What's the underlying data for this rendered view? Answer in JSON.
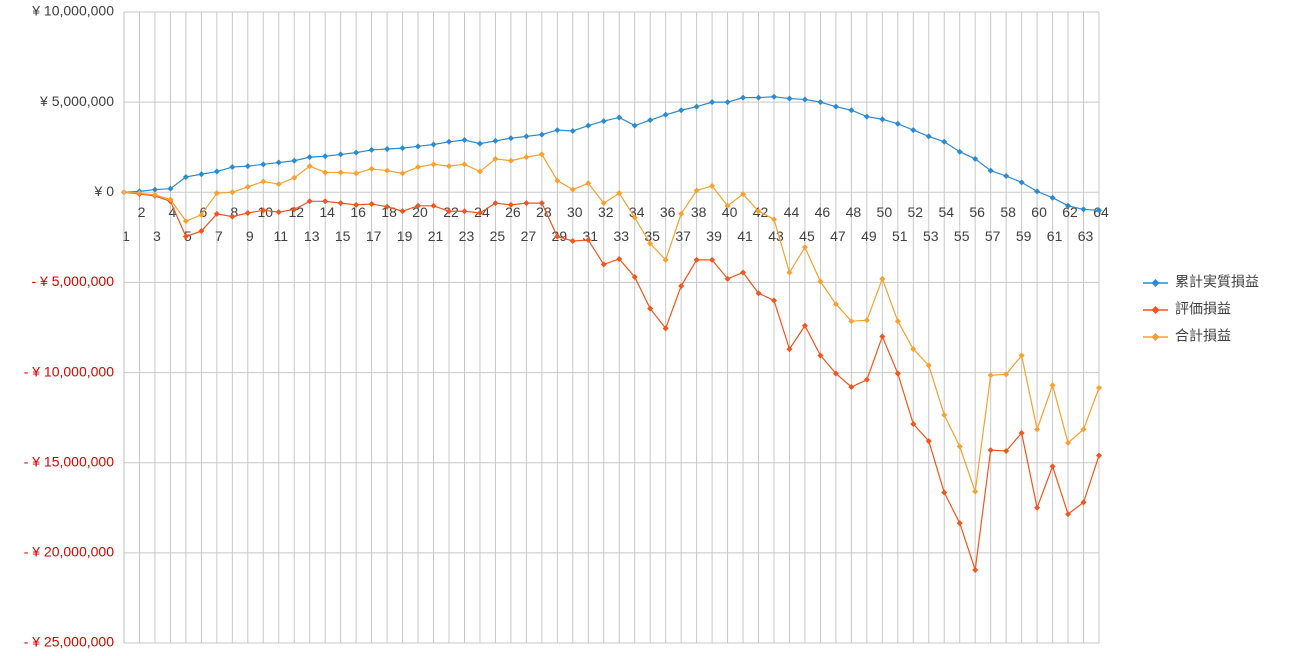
{
  "chart_data": {
    "type": "line",
    "categories": [
      "1",
      "2",
      "3",
      "4",
      "5",
      "6",
      "7",
      "8",
      "9",
      "10",
      "11",
      "12",
      "13",
      "14",
      "15",
      "16",
      "17",
      "18",
      "19",
      "20",
      "21",
      "22",
      "23",
      "24",
      "25",
      "26",
      "27",
      "28",
      "29",
      "30",
      "31",
      "32",
      "33",
      "34",
      "35",
      "36",
      "37",
      "38",
      "39",
      "40",
      "41",
      "42",
      "43",
      "44",
      "45",
      "46",
      "47",
      "48",
      "49",
      "50",
      "51",
      "52",
      "53",
      "54",
      "55",
      "56",
      "57",
      "58",
      "59",
      "60",
      "61",
      "62",
      "63",
      "64"
    ],
    "series": [
      {
        "name": "累計実質損益",
        "color": "#2a8ad2",
        "values": [
          0,
          50000,
          150000,
          200000,
          850000,
          1000000,
          1150000,
          1400000,
          1450000,
          1550000,
          1650000,
          1750000,
          1950000,
          2000000,
          2100000,
          2200000,
          2350000,
          2400000,
          2450000,
          2550000,
          2650000,
          2800000,
          2900000,
          2700000,
          2850000,
          3000000,
          3100000,
          3200000,
          3450000,
          3400000,
          3700000,
          3950000,
          4150000,
          3700000,
          4000000,
          4300000,
          4550000,
          4750000,
          5000000,
          5000000,
          5250000,
          5250000,
          5300000,
          5200000,
          5150000,
          5000000,
          4750000,
          4550000,
          4200000,
          4050000,
          3800000,
          3450000,
          3100000,
          2800000,
          2250000,
          1850000,
          1200000,
          900000,
          550000,
          50000,
          -300000,
          -750000,
          -950000,
          -1000000
        ]
      },
      {
        "name": "評価損益",
        "color": "#f2561d",
        "values": [
          0,
          -100000,
          -200000,
          -500000,
          -2450000,
          -2150000,
          -1200000,
          -1350000,
          -1150000,
          -1000000,
          -1100000,
          -950000,
          -500000,
          -500000,
          -600000,
          -700000,
          -650000,
          -800000,
          -1050000,
          -750000,
          -750000,
          -1050000,
          -1050000,
          -1150000,
          -600000,
          -700000,
          -600000,
          -600000,
          -2450000,
          -2700000,
          -2650000,
          -4000000,
          -3700000,
          -4700000,
          -6450000,
          -7550000,
          -5200000,
          -3750000,
          -3750000,
          -4800000,
          -4450000,
          -5600000,
          -6000000,
          -8700000,
          -7400000,
          -9050000,
          -10050000,
          -10800000,
          -10400000,
          -8000000,
          -10050000,
          -12850000,
          -13800000,
          -16650000,
          -18350000,
          -20950000,
          -14300000,
          -14350000,
          -13350000,
          -17500000,
          -15200000,
          -17850000,
          -17200000,
          -14600000
        ]
      },
      {
        "name": "合計損益",
        "color": "#f8a12e",
        "values": [
          0,
          -50000,
          -150000,
          -400000,
          -1600000,
          -1250000,
          -50000,
          0,
          300000,
          600000,
          450000,
          800000,
          1450000,
          1100000,
          1100000,
          1050000,
          1300000,
          1200000,
          1050000,
          1400000,
          1550000,
          1450000,
          1550000,
          1150000,
          1850000,
          1750000,
          1950000,
          2100000,
          650000,
          150000,
          500000,
          -600000,
          -50000,
          -1400000,
          -2850000,
          -3750000,
          -1200000,
          100000,
          350000,
          -750000,
          -100000,
          -1050000,
          -1500000,
          -4450000,
          -3050000,
          -4950000,
          -6200000,
          -7150000,
          -7100000,
          -4800000,
          -7150000,
          -8700000,
          -9600000,
          -12350000,
          -14100000,
          -16600000,
          -10150000,
          -10100000,
          -9050000,
          -13150000,
          -10700000,
          -13900000,
          -13150000,
          -10850000
        ]
      }
    ],
    "ylim": [
      -25000000,
      10000000
    ],
    "yticks": [
      {
        "value": 10000000,
        "label": "¥ 10,000,000"
      },
      {
        "value": 5000000,
        "label": "¥ 5,000,000"
      },
      {
        "value": 0,
        "label": "¥ 0"
      },
      {
        "value": -5000000,
        "label": "- ¥ 5,000,000"
      },
      {
        "value": -10000000,
        "label": "- ¥ 10,000,000"
      },
      {
        "value": -15000000,
        "label": "- ¥ 15,000,000"
      },
      {
        "value": -20000000,
        "label": "- ¥ 20,000,000"
      },
      {
        "value": -25000000,
        "label": "- ¥ 25,000,000"
      }
    ],
    "negative_tick_color": "#e00000",
    "grid": true,
    "legend": "right"
  }
}
